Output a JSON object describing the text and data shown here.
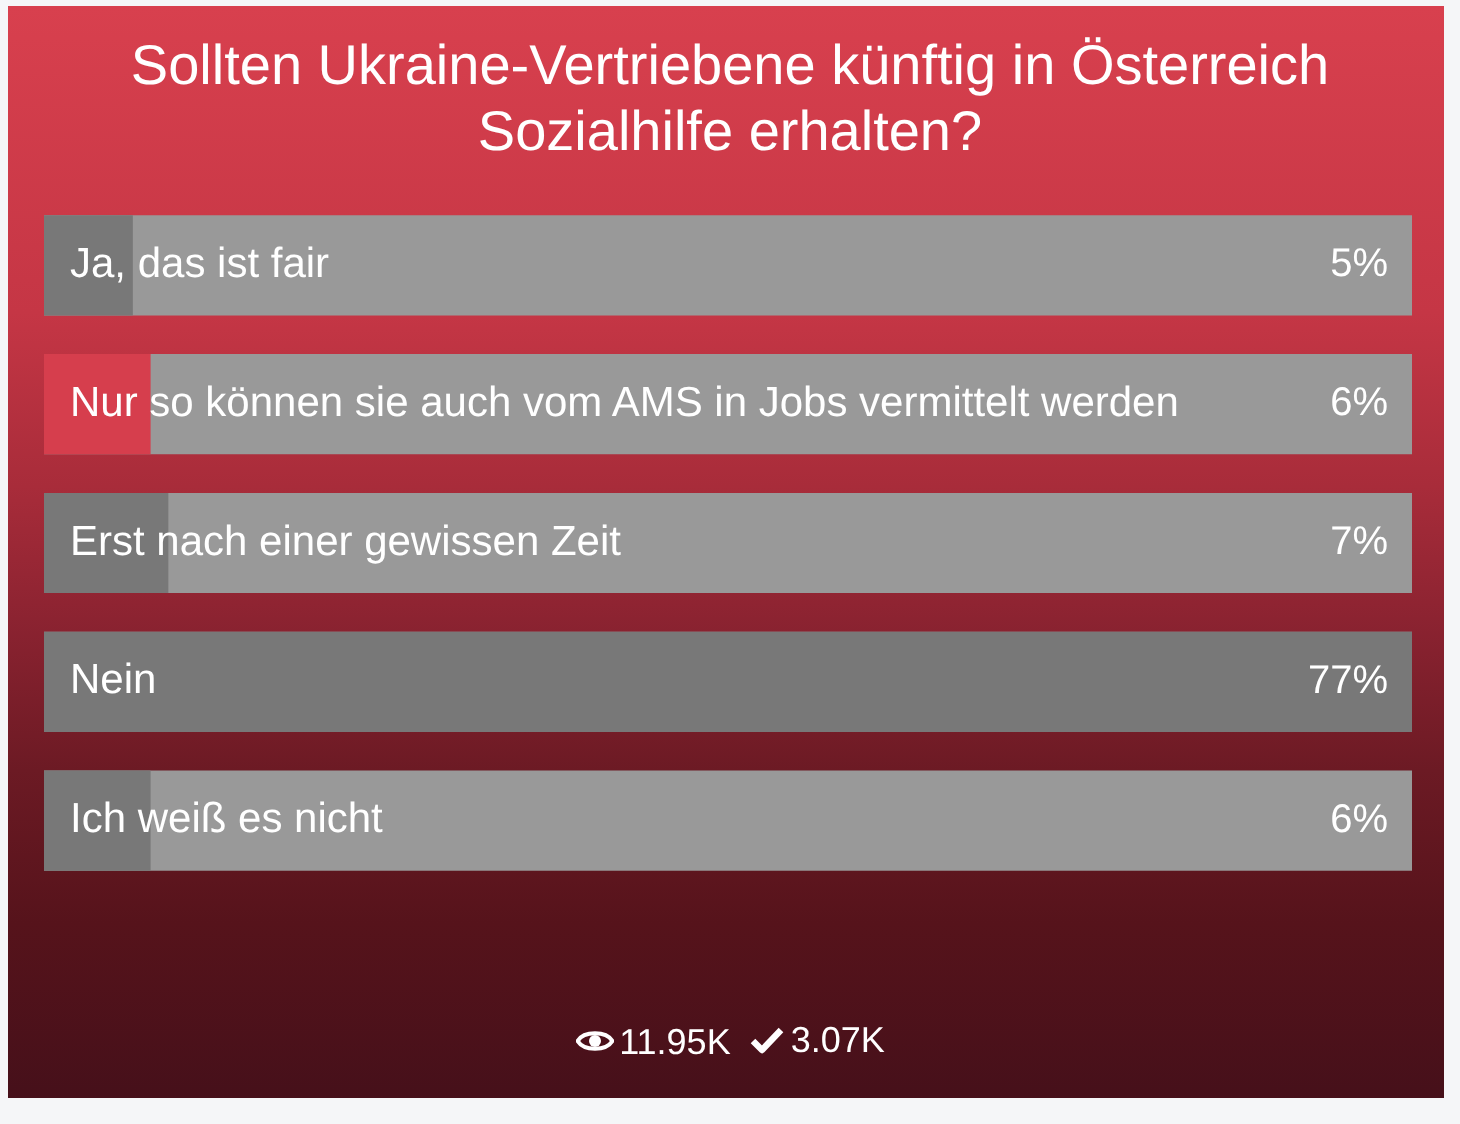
{
  "chart_data": {
    "type": "bar",
    "orientation": "horizontal",
    "title": "Sollten Ukraine-Vertriebene künftig in Österreich Sozialhilfe erhalten?",
    "categories": [
      "Ja, das ist fair",
      "Nur so können sie auch vom AMS in Jobs vermittelt werden",
      "Erst nach einer gewissen Zeit",
      "Nein",
      "Ich weiß es nicht"
    ],
    "values": [
      5,
      6,
      7,
      77,
      6
    ],
    "colors": [
      "#787878",
      "#d63e4d",
      "#787878",
      "#787878",
      "#787878"
    ],
    "value_labels": [
      "5%",
      "6%",
      "7%",
      "77%",
      "6%"
    ],
    "tick_labels": "y",
    "annotations": [
      "11.95K",
      "3.07K"
    ]
  }
}
